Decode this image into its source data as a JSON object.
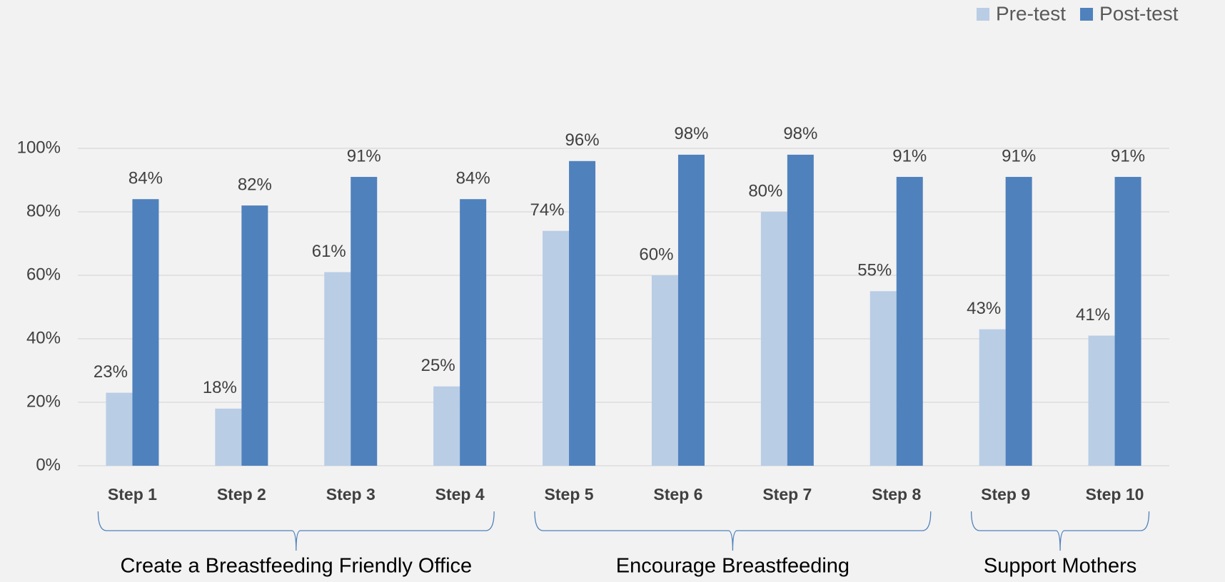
{
  "chart_data": {
    "type": "bar",
    "categories": [
      "Step 1",
      "Step 2",
      "Step 3",
      "Step 4",
      "Step 5",
      "Step 6",
      "Step 7",
      "Step 8",
      "Step 9",
      "Step 10"
    ],
    "series": [
      {
        "name": "Pre-test",
        "color": "#b9cde5",
        "values": [
          23,
          18,
          61,
          25,
          74,
          60,
          80,
          55,
          43,
          41
        ],
        "value_labels": [
          "23%",
          "18%",
          "61%",
          "25%",
          "74%",
          "60%",
          "80%",
          "55%",
          "43%",
          "41%"
        ]
      },
      {
        "name": "Post-test",
        "color": "#4f81bd",
        "values": [
          84,
          82,
          91,
          84,
          96,
          98,
          98,
          91,
          91,
          91
        ],
        "value_labels": [
          "84%",
          "82%",
          "91%",
          "84%",
          "96%",
          "98%",
          "98%",
          "91%",
          "91%",
          "91%"
        ]
      }
    ],
    "ylim": [
      0,
      100
    ],
    "yticks": [
      {
        "value": 0,
        "label": "0%"
      },
      {
        "value": 20,
        "label": "20%"
      },
      {
        "value": 40,
        "label": "40%"
      },
      {
        "value": 60,
        "label": "60%"
      },
      {
        "value": 80,
        "label": "80%"
      },
      {
        "value": 100,
        "label": "100%"
      }
    ],
    "grid": true,
    "legend": "top-right",
    "groups": [
      {
        "label": "Create a Breastfeeding Friendly Office",
        "categories": [
          "Step 1",
          "Step 2",
          "Step 3",
          "Step 4"
        ]
      },
      {
        "label": "Encourage Breastfeeding",
        "categories": [
          "Step 5",
          "Step 6",
          "Step 7",
          "Step 8"
        ]
      },
      {
        "label": "Support Mothers",
        "categories": [
          "Step 9",
          "Step 10"
        ]
      }
    ]
  }
}
